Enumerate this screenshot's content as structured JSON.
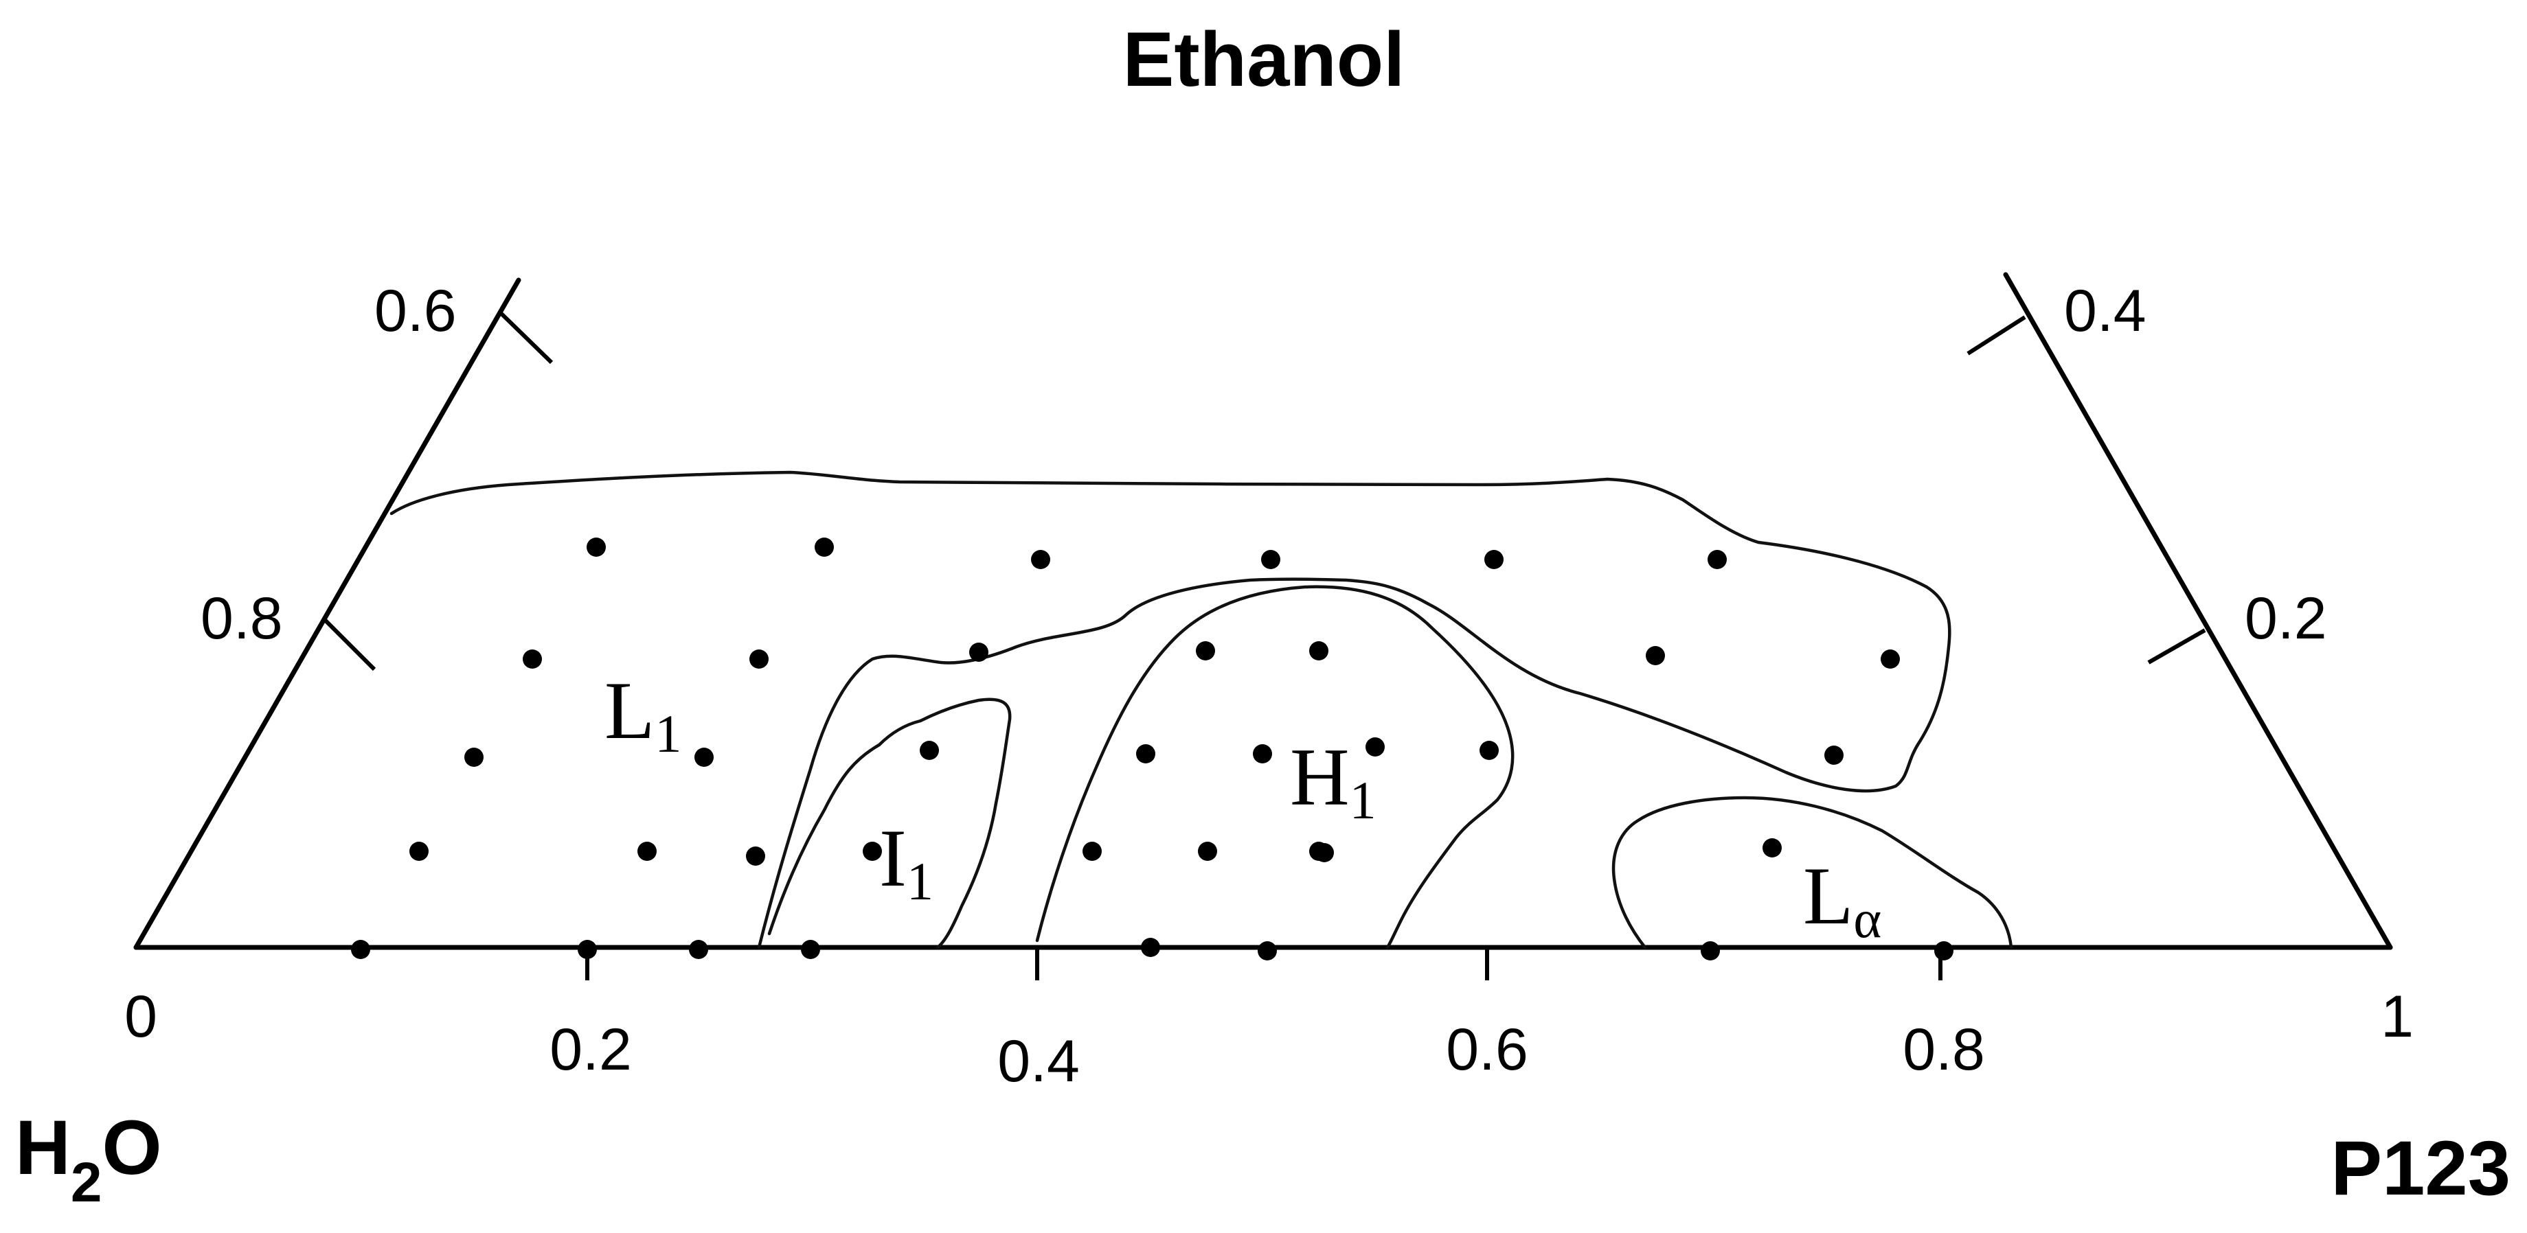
{
  "components": {
    "top": "Ethanol",
    "bottom_left": "H",
    "bottom_left_subscript": "2",
    "bottom_left_suffix": "O",
    "bottom_right": "P123"
  },
  "axes": {
    "bottom_ticks": [
      "0",
      "0.2",
      "0.4",
      "0.6",
      "0.8",
      "1"
    ],
    "left_ticks": [
      "0.6",
      "0.8"
    ],
    "right_ticks": [
      "0.4",
      "0.2"
    ]
  },
  "phases": [
    {
      "base": "L",
      "sub": "1"
    },
    {
      "base": "I",
      "sub": "1"
    },
    {
      "base": "H",
      "sub": "1"
    },
    {
      "base": "L",
      "sub": "α"
    }
  ],
  "colors": {
    "ink": "#000000",
    "background": "#ffffff"
  },
  "sample_points_count": 42
}
